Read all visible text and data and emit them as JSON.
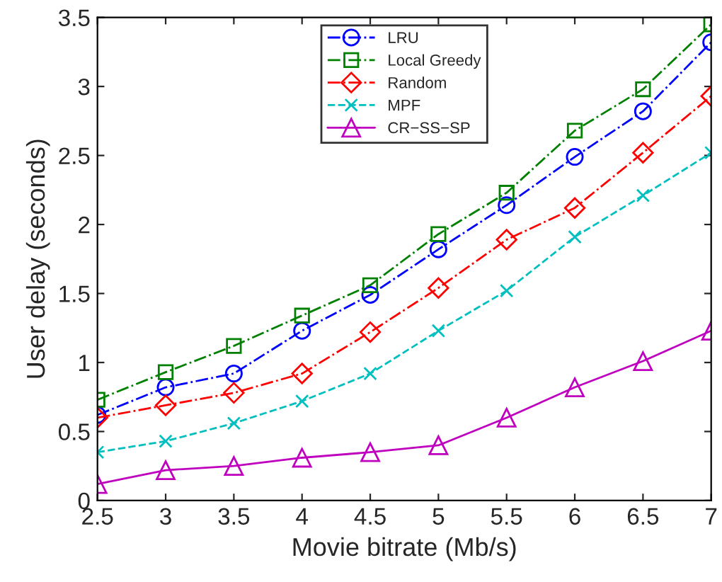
{
  "chart_data": {
    "type": "line",
    "xlabel": "Movie bitrate (Mb/s)",
    "ylabel": "User delay (seconds)",
    "x": [
      2.5,
      3,
      3.5,
      4,
      4.5,
      5,
      5.5,
      6,
      6.5,
      7
    ],
    "xlim": [
      2.5,
      7
    ],
    "xticks": [
      2.5,
      3,
      3.5,
      4,
      4.5,
      5,
      5.5,
      6,
      6.5,
      7
    ],
    "ylim": [
      0,
      3.5
    ],
    "yticks": [
      0,
      0.5,
      1,
      1.5,
      2,
      2.5,
      3,
      3.5
    ],
    "grid": false,
    "legend": "top",
    "series": [
      {
        "name": "LRU",
        "color": "#0000ff",
        "marker": "circle",
        "line_style": "dashdot",
        "values": [
          0.62,
          0.82,
          0.92,
          1.23,
          1.49,
          1.82,
          2.14,
          2.49,
          2.82,
          3.32
        ]
      },
      {
        "name": "Local Greedy",
        "color": "#008000",
        "marker": "square",
        "line_style": "dashdot",
        "values": [
          0.73,
          0.93,
          1.12,
          1.34,
          1.56,
          1.93,
          2.23,
          2.68,
          2.98,
          3.45
        ]
      },
      {
        "name": "Random",
        "color": "#ff0000",
        "marker": "diamond",
        "line_style": "dashdot",
        "values": [
          0.6,
          0.69,
          0.78,
          0.92,
          1.22,
          1.54,
          1.89,
          2.12,
          2.52,
          2.93
        ]
      },
      {
        "name": "MPF",
        "color": "#00bfbf",
        "marker": "cross",
        "line_style": "dashed",
        "values": [
          0.35,
          0.43,
          0.56,
          0.72,
          0.92,
          1.23,
          1.52,
          1.91,
          2.21,
          2.52
        ]
      },
      {
        "name": "CR−SS−SP",
        "color": "#bf00bf",
        "marker": "triangle",
        "line_style": "solid",
        "values": [
          0.12,
          0.22,
          0.25,
          0.31,
          0.35,
          0.4,
          0.6,
          0.82,
          1.01,
          1.23
        ]
      }
    ]
  }
}
